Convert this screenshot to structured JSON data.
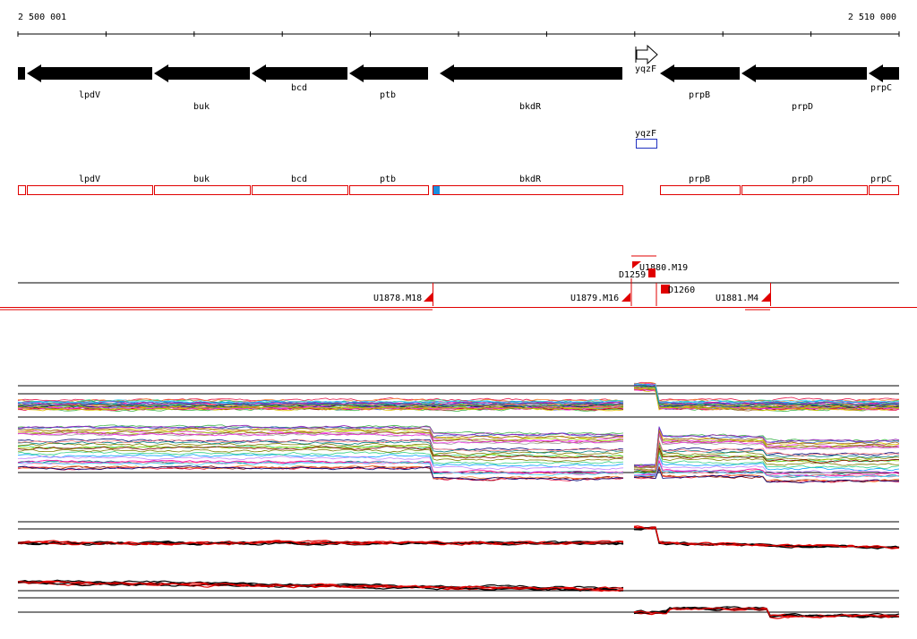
{
  "ruler": {
    "start_label": "2 500 001",
    "end_label": "2 510 000"
  },
  "colors": {
    "gene": "#000000",
    "cds_box": "#e00000",
    "start_marker": "#1a8fe0",
    "yqzF_box": "#2030c0",
    "probe": "#e00000",
    "trace_black": "#000000",
    "trace_red": "#e00000"
  },
  "genes_forward": [
    {
      "name": "yqzF",
      "icon": "outline-arrow-right-icon"
    }
  ],
  "genes_reverse": [
    {
      "name": "lpdV"
    },
    {
      "name": "buk"
    },
    {
      "name": "bcd"
    },
    {
      "name": "ptb"
    },
    {
      "name": "bkdR"
    },
    {
      "name": "prpB"
    },
    {
      "name": "prpD"
    },
    {
      "name": "prpC"
    }
  ],
  "cds_forward": [
    {
      "name": "yqzF"
    }
  ],
  "cds_reverse": [
    {
      "name": "lpdV"
    },
    {
      "name": "buk"
    },
    {
      "name": "bcd"
    },
    {
      "name": "ptb"
    },
    {
      "name": "bkdR"
    },
    {
      "name": "prpB"
    },
    {
      "name": "prpD"
    },
    {
      "name": "prpC"
    }
  ],
  "transcription_units": [
    {
      "name": "U1880.M19"
    },
    {
      "name": "D1259"
    },
    {
      "name": "D1260"
    },
    {
      "name": "U1878.M18"
    },
    {
      "name": "U1879.M16"
    },
    {
      "name": "U1881.M4"
    }
  ],
  "expression_panels": [
    {
      "id": "panel-1",
      "series_count": 60,
      "style": "multicolor"
    },
    {
      "id": "panel-2",
      "series_count": 8,
      "style": "black-red"
    }
  ]
}
